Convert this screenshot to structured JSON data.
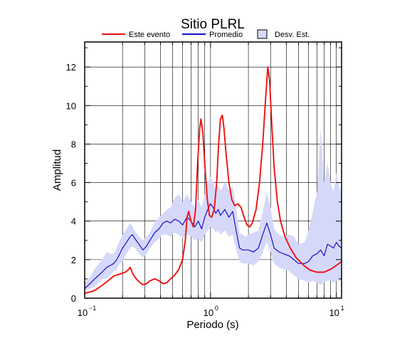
{
  "chart_data": {
    "type": "line",
    "title": "Sitio PLRL",
    "xlabel": "Periodo (s)",
    "ylabel": "Amplitud",
    "x_scale": "log",
    "xlim": [
      0.1,
      11
    ],
    "ylim": [
      0,
      13.3
    ],
    "grid": true,
    "legend_position": "top",
    "x_ticks": [
      {
        "value": 0.1,
        "base": "10",
        "exp": "−1"
      },
      {
        "value": 1,
        "base": "10",
        "exp": "0"
      },
      {
        "value": 10,
        "base": "10",
        "exp": "1"
      }
    ],
    "y_ticks": [
      0,
      2,
      4,
      6,
      8,
      10,
      12
    ],
    "legend": [
      {
        "label": "Este evento",
        "kind": "line",
        "color": "#ee1111"
      },
      {
        "label": "Promedio",
        "kind": "line",
        "color": "#1111cc"
      },
      {
        "label": "Desv. Est.",
        "kind": "band",
        "color": "#d6d8fa"
      }
    ],
    "series": [
      {
        "name": "Este evento",
        "color": "#ee1111",
        "points": [
          [
            0.1,
            0.25
          ],
          [
            0.11,
            0.32
          ],
          [
            0.12,
            0.4
          ],
          [
            0.13,
            0.55
          ],
          [
            0.14,
            0.7
          ],
          [
            0.15,
            0.85
          ],
          [
            0.16,
            1.0
          ],
          [
            0.17,
            1.15
          ],
          [
            0.18,
            1.2
          ],
          [
            0.19,
            1.25
          ],
          [
            0.2,
            1.3
          ],
          [
            0.21,
            1.35
          ],
          [
            0.22,
            1.45
          ],
          [
            0.23,
            1.6
          ],
          [
            0.24,
            1.3
          ],
          [
            0.25,
            1.1
          ],
          [
            0.27,
            0.85
          ],
          [
            0.29,
            0.7
          ],
          [
            0.31,
            0.75
          ],
          [
            0.33,
            0.9
          ],
          [
            0.36,
            1.0
          ],
          [
            0.39,
            0.9
          ],
          [
            0.42,
            0.75
          ],
          [
            0.45,
            0.8
          ],
          [
            0.48,
            1.0
          ],
          [
            0.52,
            1.2
          ],
          [
            0.56,
            1.5
          ],
          [
            0.6,
            2.0
          ],
          [
            0.63,
            3.0
          ],
          [
            0.65,
            4.2
          ],
          [
            0.67,
            4.5
          ],
          [
            0.7,
            4.0
          ],
          [
            0.73,
            3.7
          ],
          [
            0.76,
            4.6
          ],
          [
            0.79,
            7.0
          ],
          [
            0.82,
            8.8
          ],
          [
            0.84,
            9.3
          ],
          [
            0.87,
            8.6
          ],
          [
            0.9,
            7.0
          ],
          [
            0.94,
            5.2
          ],
          [
            0.98,
            4.3
          ],
          [
            1.02,
            4.2
          ],
          [
            1.07,
            4.6
          ],
          [
            1.12,
            6.0
          ],
          [
            1.16,
            8.0
          ],
          [
            1.2,
            9.3
          ],
          [
            1.24,
            9.5
          ],
          [
            1.28,
            8.8
          ],
          [
            1.33,
            7.5
          ],
          [
            1.4,
            6.0
          ],
          [
            1.48,
            5.1
          ],
          [
            1.56,
            4.8
          ],
          [
            1.65,
            4.9
          ],
          [
            1.75,
            4.7
          ],
          [
            1.85,
            4.2
          ],
          [
            1.95,
            3.8
          ],
          [
            2.05,
            3.7
          ],
          [
            2.15,
            3.9
          ],
          [
            2.3,
            4.6
          ],
          [
            2.45,
            6.0
          ],
          [
            2.6,
            8.0
          ],
          [
            2.75,
            10.5
          ],
          [
            2.85,
            12.0
          ],
          [
            2.95,
            11.3
          ],
          [
            3.05,
            9.3
          ],
          [
            3.2,
            6.8
          ],
          [
            3.4,
            5.0
          ],
          [
            3.6,
            4.0
          ],
          [
            3.9,
            3.2
          ],
          [
            4.3,
            2.6
          ],
          [
            4.8,
            2.1
          ],
          [
            5.5,
            1.7
          ],
          [
            6.2,
            1.45
          ],
          [
            7.0,
            1.35
          ],
          [
            8.0,
            1.35
          ],
          [
            9.0,
            1.5
          ],
          [
            10.0,
            1.7
          ],
          [
            11.0,
            1.9
          ]
        ]
      },
      {
        "name": "Promedio",
        "color": "#1111cc",
        "points": [
          [
            0.1,
            0.5
          ],
          [
            0.11,
            0.75
          ],
          [
            0.12,
            1.0
          ],
          [
            0.13,
            1.2
          ],
          [
            0.14,
            1.4
          ],
          [
            0.15,
            1.6
          ],
          [
            0.16,
            1.7
          ],
          [
            0.17,
            1.8
          ],
          [
            0.18,
            2.0
          ],
          [
            0.19,
            2.3
          ],
          [
            0.2,
            2.6
          ],
          [
            0.21,
            2.8
          ],
          [
            0.22,
            3.0
          ],
          [
            0.23,
            3.2
          ],
          [
            0.24,
            3.3
          ],
          [
            0.25,
            3.1
          ],
          [
            0.27,
            2.8
          ],
          [
            0.29,
            2.5
          ],
          [
            0.31,
            2.7
          ],
          [
            0.33,
            3.0
          ],
          [
            0.36,
            3.4
          ],
          [
            0.39,
            3.6
          ],
          [
            0.42,
            3.9
          ],
          [
            0.45,
            4.0
          ],
          [
            0.48,
            3.9
          ],
          [
            0.52,
            4.1
          ],
          [
            0.56,
            4.0
          ],
          [
            0.6,
            3.8
          ],
          [
            0.65,
            4.2
          ],
          [
            0.7,
            4.0
          ],
          [
            0.75,
            3.7
          ],
          [
            0.8,
            4.0
          ],
          [
            0.85,
            3.6
          ],
          [
            0.9,
            4.2
          ],
          [
            0.95,
            4.6
          ],
          [
            1.0,
            4.9
          ],
          [
            1.05,
            4.7
          ],
          [
            1.1,
            4.4
          ],
          [
            1.15,
            4.6
          ],
          [
            1.2,
            4.3
          ],
          [
            1.3,
            4.6
          ],
          [
            1.4,
            4.2
          ],
          [
            1.5,
            4.5
          ],
          [
            1.6,
            3.5
          ],
          [
            1.7,
            2.6
          ],
          [
            1.8,
            2.5
          ],
          [
            1.9,
            2.5
          ],
          [
            2.0,
            2.5
          ],
          [
            2.2,
            2.4
          ],
          [
            2.4,
            2.6
          ],
          [
            2.6,
            3.3
          ],
          [
            2.8,
            3.9
          ],
          [
            3.0,
            3.3
          ],
          [
            3.2,
            2.6
          ],
          [
            3.5,
            2.4
          ],
          [
            3.8,
            2.3
          ],
          [
            4.2,
            2.2
          ],
          [
            4.6,
            2.0
          ],
          [
            5.0,
            1.8
          ],
          [
            5.6,
            1.8
          ],
          [
            6.0,
            1.9
          ],
          [
            6.5,
            2.2
          ],
          [
            7.0,
            2.3
          ],
          [
            7.5,
            2.5
          ],
          [
            8.0,
            2.2
          ],
          [
            8.5,
            2.8
          ],
          [
            9.0,
            2.7
          ],
          [
            9.5,
            2.6
          ],
          [
            10.0,
            2.9
          ],
          [
            10.5,
            2.7
          ],
          [
            11.0,
            2.6
          ]
        ]
      }
    ],
    "band": {
      "name": "Desv. Est.",
      "color": "#d6d8fa",
      "points": [
        [
          0.1,
          0.4,
          0.8
        ],
        [
          0.11,
          0.5,
          1.1
        ],
        [
          0.12,
          0.6,
          1.5
        ],
        [
          0.13,
          0.8,
          1.8
        ],
        [
          0.14,
          1.0,
          2.1
        ],
        [
          0.15,
          1.0,
          2.4
        ],
        [
          0.16,
          1.2,
          2.3
        ],
        [
          0.17,
          1.4,
          2.3
        ],
        [
          0.18,
          1.5,
          2.6
        ],
        [
          0.19,
          1.8,
          3.0
        ],
        [
          0.2,
          1.9,
          3.3
        ],
        [
          0.21,
          2.2,
          3.5
        ],
        [
          0.22,
          2.4,
          3.7
        ],
        [
          0.23,
          2.6,
          3.9
        ],
        [
          0.24,
          2.7,
          3.7
        ],
        [
          0.25,
          2.6,
          3.5
        ],
        [
          0.27,
          2.3,
          3.2
        ],
        [
          0.29,
          2.1,
          3.0
        ],
        [
          0.31,
          2.3,
          3.2
        ],
        [
          0.33,
          2.6,
          3.4
        ],
        [
          0.36,
          2.9,
          3.9
        ],
        [
          0.39,
          3.1,
          4.2
        ],
        [
          0.42,
          3.3,
          4.4
        ],
        [
          0.45,
          3.3,
          4.6
        ],
        [
          0.48,
          3.2,
          4.7
        ],
        [
          0.52,
          3.4,
          5.2
        ],
        [
          0.56,
          3.3,
          5.4
        ],
        [
          0.6,
          3.1,
          5.0
        ],
        [
          0.65,
          3.3,
          5.4
        ],
        [
          0.7,
          3.2,
          5.0
        ],
        [
          0.75,
          3.0,
          4.7
        ],
        [
          0.8,
          3.1,
          5.1
        ],
        [
          0.85,
          2.9,
          4.7
        ],
        [
          0.9,
          3.3,
          5.4
        ],
        [
          0.95,
          3.5,
          6.0
        ],
        [
          1.0,
          3.7,
          6.3
        ],
        [
          1.05,
          3.6,
          6.0
        ],
        [
          1.1,
          3.4,
          5.6
        ],
        [
          1.15,
          3.5,
          5.9
        ],
        [
          1.2,
          3.3,
          5.6
        ],
        [
          1.3,
          3.5,
          6.0
        ],
        [
          1.4,
          3.2,
          5.6
        ],
        [
          1.5,
          3.3,
          5.8
        ],
        [
          1.6,
          2.5,
          4.7
        ],
        [
          1.7,
          1.9,
          3.4
        ],
        [
          1.8,
          1.8,
          3.3
        ],
        [
          1.9,
          1.8,
          3.2
        ],
        [
          2.0,
          1.8,
          3.3
        ],
        [
          2.2,
          1.7,
          3.4
        ],
        [
          2.4,
          1.9,
          3.5
        ],
        [
          2.6,
          2.4,
          4.5
        ],
        [
          2.8,
          2.9,
          5.5
        ],
        [
          3.0,
          2.4,
          4.7
        ],
        [
          3.2,
          1.8,
          3.6
        ],
        [
          3.5,
          1.6,
          3.3
        ],
        [
          3.8,
          1.5,
          3.2
        ],
        [
          4.2,
          1.4,
          3.3
        ],
        [
          4.6,
          1.2,
          3.2
        ],
        [
          5.0,
          1.0,
          2.8
        ],
        [
          5.6,
          0.9,
          2.9
        ],
        [
          6.0,
          0.8,
          3.5
        ],
        [
          6.5,
          0.9,
          4.5
        ],
        [
          7.0,
          0.8,
          5.5
        ],
        [
          7.5,
          0.7,
          8.8
        ],
        [
          8.0,
          0.8,
          6.0
        ],
        [
          8.5,
          0.9,
          7.0
        ],
        [
          9.0,
          0.9,
          6.0
        ],
        [
          9.5,
          0.8,
          5.5
        ],
        [
          10.0,
          0.9,
          6.5
        ],
        [
          10.5,
          0.9,
          5.8
        ],
        [
          11.0,
          0.9,
          5.5
        ]
      ]
    }
  }
}
